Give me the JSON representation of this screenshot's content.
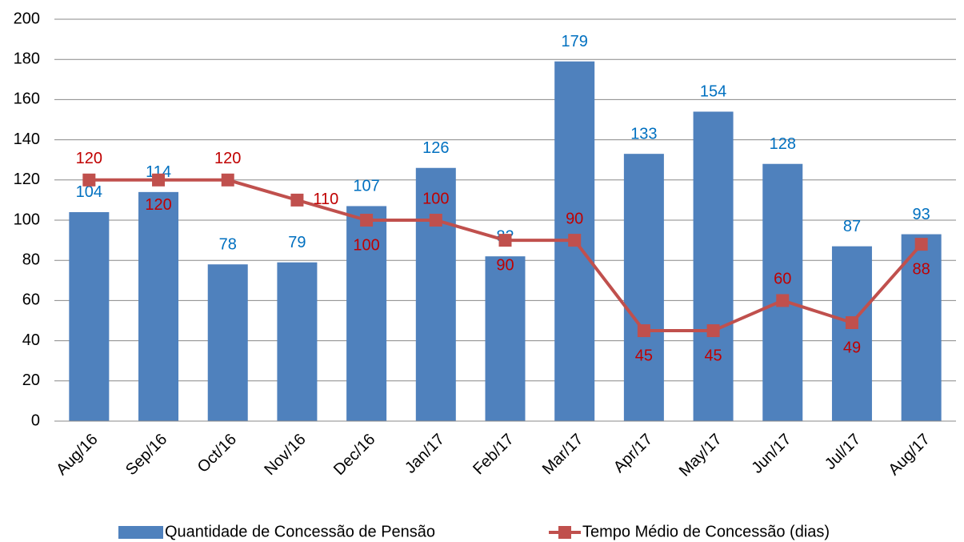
{
  "chart_data": {
    "type": "bar",
    "categories": [
      "Aug/16",
      "Sep/16",
      "Oct/16",
      "Nov/16",
      "Dec/16",
      "Jan/17",
      "Feb/17",
      "Mar/17",
      "Apr/17",
      "May/17",
      "Jun/17",
      "Jul/17",
      "Aug/17"
    ],
    "series": [
      {
        "name": "Quantidade de Concessão de Pensão",
        "type": "bar",
        "color": "#4f81bd",
        "label_color": "#0070c0",
        "values": [
          104,
          114,
          78,
          79,
          107,
          126,
          82,
          179,
          133,
          154,
          128,
          87,
          93
        ]
      },
      {
        "name": "Tempo Médio de Concessão (dias)",
        "type": "line",
        "color": "#c0504d",
        "label_color": "#c00000",
        "values": [
          120,
          120,
          120,
          110,
          100,
          100,
          90,
          90,
          45,
          45,
          60,
          49,
          88
        ]
      }
    ],
    "ylim": [
      0,
      200
    ],
    "yticks": [
      0,
      20,
      40,
      60,
      80,
      100,
      120,
      140,
      160,
      180,
      200
    ],
    "grid": true,
    "legend": "bottom"
  }
}
